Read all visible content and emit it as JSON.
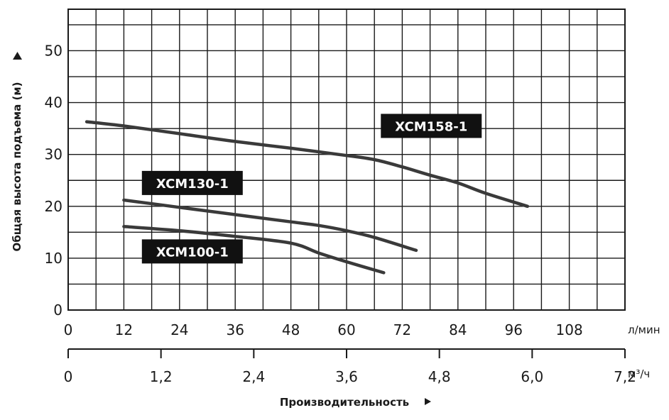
{
  "chart_data": {
    "type": "line",
    "ylabel": "Общая высота подъема (м)",
    "xlabel": "Производительность",
    "x_unit": "л/мин",
    "x2_unit": "м³/ч",
    "xlim": [
      0,
      120
    ],
    "ylim": [
      0,
      58
    ],
    "x_ticks": [
      0,
      12,
      24,
      36,
      48,
      60,
      72,
      84,
      96,
      108
    ],
    "x_tick_labels": [
      "0",
      "12",
      "24",
      "36",
      "48",
      "60",
      "72",
      "84",
      "96",
      "108"
    ],
    "y_ticks": [
      0,
      10,
      20,
      30,
      40,
      50
    ],
    "y_tick_labels": [
      "0",
      "10",
      "20",
      "30",
      "40",
      "50"
    ],
    "x2_ticks": [
      0,
      1.2,
      2.4,
      3.6,
      4.8,
      6.0,
      7.2
    ],
    "x2_tick_labels": [
      "0",
      "1,2",
      "2,4",
      "3,6",
      "4,8",
      "6,0",
      "7,2"
    ],
    "grid": true,
    "series": [
      {
        "name": "XCM158-1",
        "x": [
          4,
          12,
          24,
          36,
          48,
          60,
          66,
          72,
          78,
          84,
          90,
          99
        ],
        "y": [
          36.3,
          35.5,
          34.0,
          32.5,
          31.2,
          29.8,
          29.0,
          27.6,
          26.0,
          24.5,
          22.5,
          20.0
        ]
      },
      {
        "name": "XCM130-1",
        "x": [
          12,
          24,
          36,
          48,
          54,
          60,
          66,
          75
        ],
        "y": [
          21.2,
          19.8,
          18.4,
          17.0,
          16.3,
          15.3,
          14.0,
          11.5
        ]
      },
      {
        "name": "XCM100-1",
        "x": [
          12,
          24,
          36,
          48,
          54,
          60,
          68
        ],
        "y": [
          16.1,
          15.3,
          14.2,
          12.9,
          11.0,
          9.3,
          7.2
        ]
      }
    ],
    "label_positions": {
      "XCM158-1": [
        68,
        35.5
      ],
      "XCM130-1": [
        16.5,
        24.5
      ],
      "XCM100-1": [
        16.5,
        11.3
      ]
    }
  }
}
